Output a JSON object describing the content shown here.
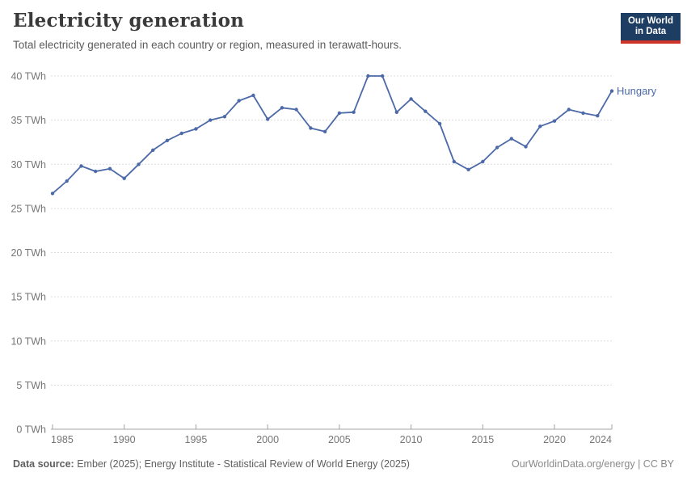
{
  "header": {
    "title": "Electricity generation",
    "subtitle": "Total electricity generated in each country or region, measured in terawatt-hours."
  },
  "logo": {
    "line1": "Our World",
    "line2": "in Data",
    "bg_color": "#1d3d63",
    "bar_color": "#cf342b"
  },
  "chart_data": {
    "type": "line",
    "title": "Electricity generation",
    "unit": "TWh",
    "x": [
      1985,
      1986,
      1987,
      1988,
      1989,
      1990,
      1991,
      1992,
      1993,
      1994,
      1995,
      1996,
      1997,
      1998,
      1999,
      2000,
      2001,
      2002,
      2003,
      2004,
      2005,
      2006,
      2007,
      2008,
      2009,
      2010,
      2011,
      2012,
      2013,
      2014,
      2015,
      2016,
      2017,
      2018,
      2019,
      2020,
      2021,
      2022,
      2023,
      2024
    ],
    "series": [
      {
        "name": "Hungary",
        "color": "#4c69a8",
        "values": [
          26.7,
          28.1,
          29.8,
          29.2,
          29.5,
          28.4,
          30.0,
          31.6,
          32.7,
          33.5,
          34.0,
          35.0,
          35.4,
          37.2,
          37.8,
          35.1,
          36.4,
          36.2,
          34.1,
          33.7,
          35.8,
          35.9,
          40.0,
          40.0,
          35.9,
          37.4,
          36.0,
          34.6,
          30.3,
          29.4,
          30.3,
          31.9,
          32.9,
          32.0,
          34.3,
          34.9,
          36.2,
          35.8,
          35.5,
          38.3
        ]
      }
    ],
    "ylim": [
      0,
      40
    ],
    "yticks": [
      0,
      5,
      10,
      15,
      20,
      25,
      30,
      35,
      40
    ],
    "xticks": [
      1985,
      1990,
      1995,
      2000,
      2005,
      2010,
      2015,
      2020,
      2024
    ],
    "grid": "horizontal-dashed",
    "legend": "end-of-line-label",
    "grid_color": "#dddddd",
    "axis_color": "#a3a3a3"
  },
  "footer": {
    "source_label": "Data source:",
    "source_text": " Ember (2025); Energy Institute - Statistical Review of World Energy (2025)",
    "right_text": "OurWorldinData.org/energy | CC BY"
  }
}
